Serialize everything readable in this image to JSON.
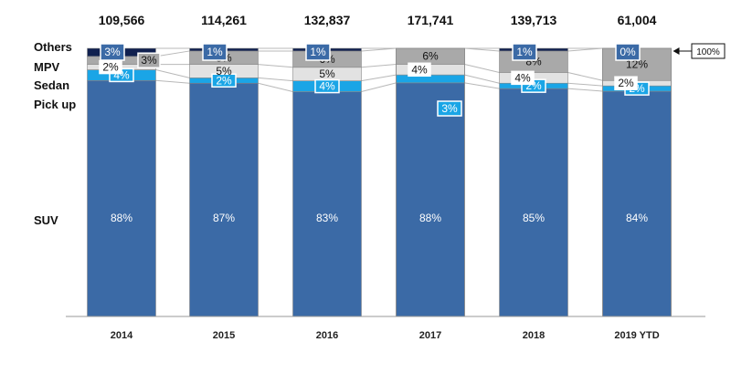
{
  "chart_data": {
    "type": "bar",
    "stacked": true,
    "normalized": true,
    "categories": [
      "2014",
      "2015",
      "2016",
      "2017",
      "2018",
      "2019 YTD"
    ],
    "totals": [
      109566,
      114261,
      132837,
      171741,
      139713,
      61004
    ],
    "totals_labels": [
      "109,566",
      "114,261",
      "132,837",
      "171,741",
      "139,713",
      "61,004"
    ],
    "reference_label": "100%",
    "ylim": [
      0,
      100
    ],
    "series": [
      {
        "name": "SUV",
        "values": [
          88,
          87,
          83,
          88,
          85,
          84
        ],
        "labels": [
          "88%",
          "87%",
          "83%",
          "88%",
          "85%",
          "84%"
        ],
        "color": "#3b6aa6"
      },
      {
        "name": "Pick up",
        "values": [
          4,
          2,
          4,
          3,
          2,
          2
        ],
        "labels": [
          "4%",
          "2%",
          "4%",
          "3%",
          "2%",
          "2%"
        ],
        "color": "#1aa5e6"
      },
      {
        "name": "Sedan",
        "values": [
          2,
          5,
          5,
          4,
          4,
          2
        ],
        "labels": [
          "2%",
          "5%",
          "5%",
          "4%",
          "4%",
          "2%"
        ],
        "color": "#e2e2e2"
      },
      {
        "name": "MPV",
        "values": [
          3,
          5,
          6,
          6,
          8,
          12
        ],
        "labels": [
          "3%",
          "5%",
          "6%",
          "6%",
          "8%",
          "12%"
        ],
        "color": "#a9a9a9"
      },
      {
        "name": "Others",
        "values": [
          3,
          1,
          1,
          0,
          1,
          0
        ],
        "labels": [
          "3%",
          "1%",
          "1%",
          "",
          "1%",
          "0%"
        ],
        "color": "#10204f"
      }
    ]
  }
}
